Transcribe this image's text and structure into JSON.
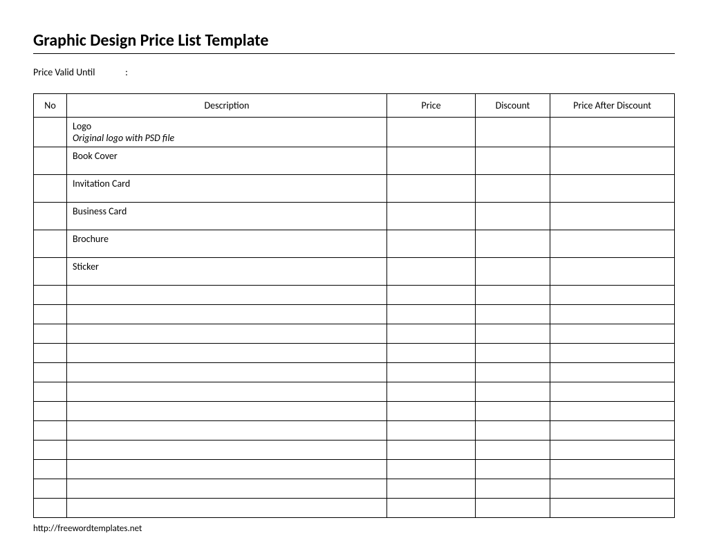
{
  "title": "Graphic Design Price List Template",
  "valid_label": "Price Valid Until",
  "valid_sep": ":",
  "columns": {
    "no": "No",
    "desc": "Description",
    "price": "Price",
    "disc": "Discount",
    "after": "Price After Discount"
  },
  "rows": [
    {
      "desc": "Logo",
      "sub": "Original logo with PSD file",
      "tall": true
    },
    {
      "desc": "Book Cover",
      "tall": true
    },
    {
      "desc": "Invitation Card",
      "tall": true
    },
    {
      "desc": "Business Card",
      "tall": true
    },
    {
      "desc": "Brochure",
      "tall": true
    },
    {
      "desc": "Sticker",
      "tall": true
    }
  ],
  "blank_row_count": 12,
  "footer_url": "http://freewordtemplates.net",
  "colors": {
    "border": "#000000",
    "background": "#ffffff",
    "text": "#000000"
  }
}
